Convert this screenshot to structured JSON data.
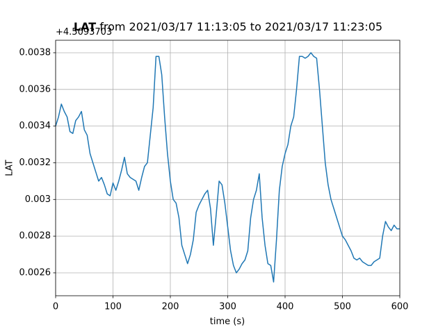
{
  "chart_data": {
    "type": "line",
    "title_bold": "LAT",
    "title": "from 2021/03/17 11:13:05 to 2021/03/17 11:23:05",
    "offset_text": "+4.5093703",
    "xlabel": "time (s)",
    "ylabel": "LAT",
    "color": "#1f77b4",
    "grid": true,
    "xlim": [
      0,
      600
    ],
    "xticks": [
      0,
      100,
      200,
      300,
      400,
      500,
      600
    ],
    "ylim": [
      0.002475,
      0.003868
    ],
    "yticks": [
      0.0026,
      0.0028,
      0.003,
      0.0032,
      0.0034,
      0.0036,
      0.0038
    ],
    "x": [
      0,
      5,
      10,
      15,
      20,
      25,
      30,
      35,
      40,
      45,
      50,
      55,
      60,
      65,
      70,
      75,
      80,
      85,
      90,
      95,
      100,
      105,
      110,
      115,
      120,
      125,
      130,
      135,
      140,
      145,
      150,
      155,
      160,
      165,
      170,
      175,
      180,
      185,
      190,
      195,
      200,
      205,
      210,
      215,
      220,
      225,
      230,
      235,
      240,
      245,
      250,
      255,
      260,
      265,
      270,
      275,
      280,
      285,
      290,
      295,
      300,
      305,
      310,
      315,
      320,
      325,
      330,
      335,
      340,
      345,
      350,
      355,
      360,
      365,
      370,
      375,
      380,
      385,
      390,
      395,
      400,
      405,
      410,
      415,
      420,
      425,
      430,
      435,
      440,
      445,
      450,
      455,
      460,
      465,
      470,
      475,
      480,
      485,
      490,
      495,
      500,
      505,
      510,
      515,
      520,
      525,
      530,
      535,
      540,
      545,
      550,
      555,
      560,
      565,
      570,
      575,
      580,
      585,
      590,
      595,
      600
    ],
    "values": [
      0.0034,
      0.00345,
      0.00352,
      0.00348,
      0.00345,
      0.00337,
      0.00336,
      0.00343,
      0.00345,
      0.00348,
      0.00338,
      0.00335,
      0.00325,
      0.0032,
      0.00315,
      0.0031,
      0.00312,
      0.00308,
      0.00303,
      0.00302,
      0.00309,
      0.00305,
      0.0031,
      0.00316,
      0.00323,
      0.00314,
      0.00312,
      0.00311,
      0.0031,
      0.00305,
      0.00312,
      0.00318,
      0.0032,
      0.00335,
      0.0035,
      0.00378,
      0.00378,
      0.00368,
      0.00345,
      0.00325,
      0.0031,
      0.003,
      0.00298,
      0.0029,
      0.00275,
      0.0027,
      0.00265,
      0.0027,
      0.00278,
      0.00293,
      0.00297,
      0.003,
      0.00303,
      0.00305,
      0.00295,
      0.00275,
      0.00292,
      0.0031,
      0.00308,
      0.00298,
      0.00285,
      0.00272,
      0.00264,
      0.0026,
      0.00262,
      0.00265,
      0.00267,
      0.00272,
      0.0029,
      0.003,
      0.00305,
      0.00314,
      0.0029,
      0.00275,
      0.00265,
      0.00264,
      0.00255,
      0.00278,
      0.00305,
      0.00318,
      0.00325,
      0.0033,
      0.0034,
      0.00345,
      0.0036,
      0.00378,
      0.00378,
      0.00377,
      0.00378,
      0.0038,
      0.00378,
      0.00377,
      0.0036,
      0.0034,
      0.0032,
      0.00308,
      0.003,
      0.00295,
      0.0029,
      0.00285,
      0.0028,
      0.00278,
      0.00275,
      0.00272,
      0.00268,
      0.00267,
      0.00268,
      0.00266,
      0.00265,
      0.00264,
      0.00264,
      0.00266,
      0.00267,
      0.00268,
      0.0028,
      0.00288,
      0.00285,
      0.00283,
      0.00286,
      0.00284,
      0.00284
    ]
  }
}
